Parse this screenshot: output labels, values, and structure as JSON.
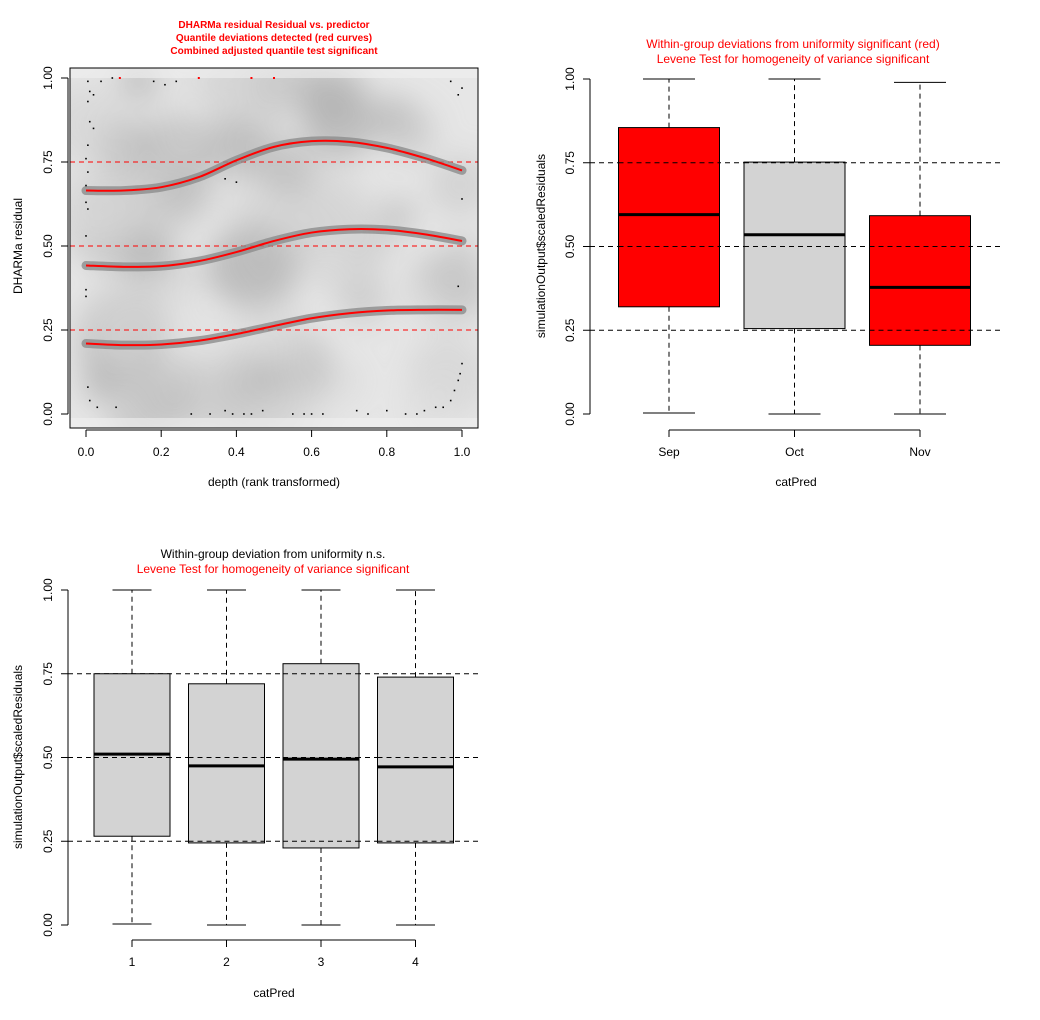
{
  "colors": {
    "red": "#ff0000",
    "box_grey": "#d3d3d3",
    "black": "#000000"
  },
  "chart_data": [
    {
      "type": "scatter",
      "title_lines": [
        "DHARMa residual Residual vs. predictor",
        "Quantile deviations detected (red curves)",
        "Combined adjusted quantile test significant"
      ],
      "title_color": "#ff0000",
      "xlabel": "depth (rank transformed)",
      "ylabel": "DHARMa residual",
      "xlim": [
        0,
        1
      ],
      "ylim": [
        0,
        1
      ],
      "x_ticks": [
        "0.0",
        "0.2",
        "0.4",
        "0.6",
        "0.8",
        "1.0"
      ],
      "y_ticks": [
        "0.00",
        "0.25",
        "0.50",
        "0.75",
        "1.00"
      ],
      "reference_lines": [
        0.25,
        0.5,
        0.75
      ],
      "background": "density smoothed grey",
      "quantile_curves": [
        {
          "quantile": 0.75,
          "x": [
            0,
            0.1,
            0.2,
            0.3,
            0.4,
            0.5,
            0.6,
            0.7,
            0.8,
            0.9,
            1.0
          ],
          "y": [
            0.665,
            0.665,
            0.675,
            0.705,
            0.755,
            0.795,
            0.812,
            0.81,
            0.792,
            0.762,
            0.725
          ]
        },
        {
          "quantile": 0.5,
          "x": [
            0,
            0.1,
            0.2,
            0.3,
            0.4,
            0.5,
            0.6,
            0.7,
            0.8,
            0.9,
            1.0
          ],
          "y": [
            0.442,
            0.438,
            0.44,
            0.455,
            0.482,
            0.515,
            0.54,
            0.55,
            0.548,
            0.535,
            0.515
          ]
        },
        {
          "quantile": 0.25,
          "x": [
            0,
            0.1,
            0.2,
            0.3,
            0.4,
            0.5,
            0.6,
            0.7,
            0.8,
            0.9,
            1.0
          ],
          "y": [
            0.21,
            0.205,
            0.207,
            0.218,
            0.238,
            0.262,
            0.285,
            0.3,
            0.308,
            0.31,
            0.31
          ]
        }
      ],
      "points": [
        {
          "x": 0.005,
          "y": 0.99
        },
        {
          "x": 0.01,
          "y": 0.96
        },
        {
          "x": 0.02,
          "y": 0.95
        },
        {
          "x": 0.005,
          "y": 0.93
        },
        {
          "x": 0.01,
          "y": 0.87
        },
        {
          "x": 0.02,
          "y": 0.85
        },
        {
          "x": 0.005,
          "y": 0.8
        },
        {
          "x": 0.0,
          "y": 0.76
        },
        {
          "x": 0.005,
          "y": 0.72
        },
        {
          "x": 0.0,
          "y": 0.68
        },
        {
          "x": 0.0,
          "y": 0.63
        },
        {
          "x": 0.005,
          "y": 0.61
        },
        {
          "x": 0.0,
          "y": 0.53
        },
        {
          "x": 0.0,
          "y": 0.37
        },
        {
          "x": 0.0,
          "y": 0.35
        },
        {
          "x": 0.005,
          "y": 0.08
        },
        {
          "x": 0.01,
          "y": 0.04
        },
        {
          "x": 0.03,
          "y": 0.02
        },
        {
          "x": 0.08,
          "y": 0.02
        },
        {
          "x": 0.04,
          "y": 0.99
        },
        {
          "x": 0.07,
          "y": 1.0
        },
        {
          "x": 0.18,
          "y": 0.99
        },
        {
          "x": 0.21,
          "y": 0.98
        },
        {
          "x": 0.24,
          "y": 0.99
        },
        {
          "x": 0.37,
          "y": 0.7
        },
        {
          "x": 0.4,
          "y": 0.69
        },
        {
          "x": 0.28,
          "y": 0.0
        },
        {
          "x": 0.33,
          "y": 0.0
        },
        {
          "x": 0.37,
          "y": 0.01
        },
        {
          "x": 0.39,
          "y": 0.0
        },
        {
          "x": 0.42,
          "y": 0.0
        },
        {
          "x": 0.44,
          "y": 0.0
        },
        {
          "x": 0.47,
          "y": 0.01
        },
        {
          "x": 0.55,
          "y": 0.0
        },
        {
          "x": 0.58,
          "y": 0.0
        },
        {
          "x": 0.6,
          "y": 0.0
        },
        {
          "x": 0.63,
          "y": 0.0
        },
        {
          "x": 0.72,
          "y": 0.01
        },
        {
          "x": 0.75,
          "y": 0.0
        },
        {
          "x": 0.8,
          "y": 0.01
        },
        {
          "x": 0.85,
          "y": 0.0
        },
        {
          "x": 0.88,
          "y": 0.0
        },
        {
          "x": 0.9,
          "y": 0.01
        },
        {
          "x": 0.93,
          "y": 0.02
        },
        {
          "x": 0.95,
          "y": 0.02
        },
        {
          "x": 0.97,
          "y": 0.04
        },
        {
          "x": 0.98,
          "y": 0.07
        },
        {
          "x": 0.99,
          "y": 0.1
        },
        {
          "x": 0.995,
          "y": 0.12
        },
        {
          "x": 1.0,
          "y": 0.15
        },
        {
          "x": 0.99,
          "y": 0.38
        },
        {
          "x": 1.0,
          "y": 0.64
        },
        {
          "x": 0.97,
          "y": 0.99
        },
        {
          "x": 0.99,
          "y": 0.95
        },
        {
          "x": 1.0,
          "y": 0.97
        }
      ],
      "outlier_points": [
        {
          "x": 0.09,
          "y": 1.0
        },
        {
          "x": 0.3,
          "y": 1.0
        },
        {
          "x": 0.44,
          "y": 1.0
        },
        {
          "x": 0.5,
          "y": 1.0
        }
      ]
    },
    {
      "type": "box",
      "title_lines": [
        "Within-group deviations from uniformity significant (red)",
        "Levene Test for homogeneity of variance significant"
      ],
      "title_colors": [
        "#ff0000",
        "#ff0000"
      ],
      "xlabel": "catPred",
      "ylabel": "simulationOutput$scaledResiduals",
      "ylim": [
        0,
        1
      ],
      "y_ticks": [
        "0.00",
        "0.25",
        "0.50",
        "0.75",
        "1.00"
      ],
      "reference_lines": [
        0.25,
        0.5,
        0.75
      ],
      "categories": [
        "Sep",
        "Oct",
        "Nov"
      ],
      "boxes": [
        {
          "min": 0.003,
          "q1": 0.32,
          "median": 0.595,
          "q3": 0.855,
          "max": 1.0,
          "fill": "#ff0000"
        },
        {
          "min": 0.0,
          "q1": 0.255,
          "median": 0.535,
          "q3": 0.752,
          "max": 1.0,
          "fill": "#d3d3d3"
        },
        {
          "min": 0.0,
          "q1": 0.205,
          "median": 0.378,
          "q3": 0.592,
          "max": 0.99,
          "fill": "#ff0000"
        }
      ]
    },
    {
      "type": "box",
      "title_lines": [
        "Within-group deviation from uniformity n.s.",
        "Levene Test for homogeneity of variance significant"
      ],
      "title_colors": [
        "#000000",
        "#ff0000"
      ],
      "xlabel": "catPred",
      "ylabel": "simulationOutput$scaledResiduals",
      "ylim": [
        0,
        1
      ],
      "y_ticks": [
        "0.00",
        "0.25",
        "0.50",
        "0.75",
        "1.00"
      ],
      "reference_lines": [
        0.25,
        0.5,
        0.75
      ],
      "categories": [
        "1",
        "2",
        "3",
        "4"
      ],
      "boxes": [
        {
          "min": 0.003,
          "q1": 0.265,
          "median": 0.51,
          "q3": 0.75,
          "max": 1.0,
          "fill": "#d3d3d3"
        },
        {
          "min": 0.0,
          "q1": 0.245,
          "median": 0.475,
          "q3": 0.72,
          "max": 1.0,
          "fill": "#d3d3d3"
        },
        {
          "min": 0.0,
          "q1": 0.23,
          "median": 0.495,
          "q3": 0.78,
          "max": 1.0,
          "fill": "#d3d3d3"
        },
        {
          "min": 0.0,
          "q1": 0.245,
          "median": 0.472,
          "q3": 0.74,
          "max": 1.0,
          "fill": "#d3d3d3"
        }
      ]
    }
  ]
}
